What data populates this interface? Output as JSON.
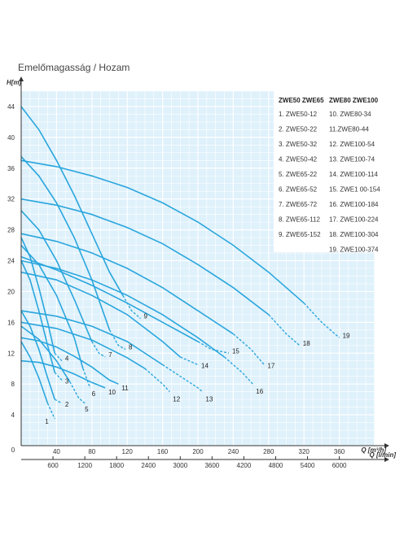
{
  "chart_data": {
    "type": "line",
    "title": "Emelőmagasság / Hozam",
    "ylabel": "H[m]",
    "xlabel": "Q [m³/h]",
    "x2label": "Q [l/min]",
    "xlim": [
      0,
      400
    ],
    "ylim": [
      0,
      46
    ],
    "y_ticks": [
      "4",
      "8",
      "12",
      "16",
      "20",
      "24",
      "28",
      "32",
      "36",
      "40",
      "44"
    ],
    "x_ticks": [
      "40",
      "80",
      "120",
      "160",
      "200",
      "240",
      "280",
      "320",
      "360"
    ],
    "origin_label": "0",
    "x2_ticks": [
      "600",
      "1200",
      "1800",
      "2400",
      "3000",
      "3600",
      "4200",
      "4800",
      "5400",
      "6000"
    ],
    "grid": true,
    "legend": {
      "placement": "top-right",
      "headers": [
        "ZWE50 ZWE65",
        "ZWE80 ZWE100"
      ],
      "col1": [
        "1. ZWE50-12",
        "2. ZWE50-22",
        "3. ZWE50-32",
        "4. ZWE50-42",
        "5. ZWE65-22",
        "6. ZWE65-52",
        "7. ZWE65-72",
        "8. ZWE65-112",
        "9. ZWE65-152"
      ],
      "col2": [
        "10. ZWE80-34",
        "11.ZWE80-44",
        "12. ZWE100-54",
        "13. ZWE100-74",
        "14. ZWE100-114",
        "15. ZWE1 00-154",
        "16. ZWE100-184",
        "17. ZWE100-224",
        "18. ZWE100-304",
        "19. ZWE100-374"
      ]
    },
    "series": [
      {
        "name": "1",
        "x": [
          0,
          10,
          20,
          30,
          38
        ],
        "y": [
          13.5,
          11.5,
          8.8,
          5.5,
          3.5
        ],
        "dash_from": 30
      },
      {
        "name": "2",
        "x": [
          0,
          10,
          20,
          30,
          38,
          46
        ],
        "y": [
          17.5,
          15.5,
          12.5,
          8.8,
          6.0,
          5.5
        ],
        "dash_from": 38
      },
      {
        "name": "3",
        "x": [
          0,
          10,
          20,
          30,
          38,
          46
        ],
        "y": [
          24.0,
          21.5,
          17.5,
          13.0,
          9.5,
          8.5
        ],
        "dash_from": 38
      },
      {
        "name": "4",
        "x": [
          0,
          10,
          20,
          30,
          38,
          46
        ],
        "y": [
          27.0,
          24.5,
          20.5,
          16.0,
          12.0,
          11.0
        ],
        "dash_from": 38
      },
      {
        "name": "5",
        "x": [
          0,
          20,
          40,
          55,
          65,
          72
        ],
        "y": [
          15.5,
          13.8,
          11.0,
          8.3,
          6.2,
          5.5
        ],
        "dash_from": 55
      },
      {
        "name": "6",
        "x": [
          0,
          20,
          40,
          60,
          70,
          78
        ],
        "y": [
          26.0,
          23.5,
          19.5,
          14.0,
          10.0,
          7.5
        ],
        "dash_from": 70
      },
      {
        "name": "7",
        "x": [
          0,
          20,
          40,
          60,
          80,
          88,
          95
        ],
        "y": [
          30.5,
          28.0,
          24.0,
          19.0,
          13.5,
          12.0,
          11.5
        ],
        "dash_from": 80
      },
      {
        "name": "8",
        "x": [
          0,
          20,
          40,
          60,
          80,
          100,
          110,
          118
        ],
        "y": [
          37.5,
          35.0,
          31.5,
          27.0,
          21.5,
          15.0,
          13.0,
          12.5
        ],
        "dash_from": 100
      },
      {
        "name": "9",
        "x": [
          0,
          20,
          40,
          60,
          80,
          100,
          115,
          125,
          135
        ],
        "y": [
          44.0,
          41.0,
          37.0,
          32.5,
          27.5,
          22.5,
          19.5,
          17.5,
          16.5
        ],
        "dash_from": 115
      },
      {
        "name": "10",
        "x": [
          0,
          20,
          40,
          60,
          80,
          95
        ],
        "y": [
          11.0,
          10.8,
          10.2,
          9.3,
          8.2,
          7.5
        ],
        "dash_from": 95
      },
      {
        "name": "11",
        "x": [
          0,
          20,
          40,
          60,
          80,
          100,
          110
        ],
        "y": [
          14.0,
          13.6,
          12.8,
          11.6,
          10.2,
          8.5,
          8.0
        ],
        "dash_from": 110
      },
      {
        "name": "12",
        "x": [
          0,
          40,
          80,
          120,
          140,
          160,
          168
        ],
        "y": [
          16.0,
          15.2,
          13.7,
          11.4,
          10.0,
          8.0,
          7.0
        ],
        "dash_from": 150
      },
      {
        "name": "13",
        "x": [
          0,
          40,
          80,
          120,
          160,
          180,
          200,
          205
        ],
        "y": [
          17.5,
          16.8,
          15.5,
          13.5,
          10.5,
          9.0,
          7.5,
          7.0
        ],
        "dash_from": 175
      },
      {
        "name": "14",
        "x": [
          0,
          40,
          80,
          120,
          160,
          180,
          200
        ],
        "y": [
          22.5,
          21.5,
          19.5,
          17.0,
          13.5,
          11.5,
          10.5
        ],
        "dash_from": 180
      },
      {
        "name": "15",
        "x": [
          0,
          40,
          80,
          120,
          160,
          200,
          215,
          235
        ],
        "y": [
          24.5,
          22.8,
          20.8,
          18.5,
          16.0,
          13.5,
          12.5,
          12.0
        ],
        "dash_from": 210
      },
      {
        "name": "16",
        "x": [
          0,
          40,
          80,
          120,
          160,
          200,
          230,
          250,
          262
        ],
        "y": [
          24.0,
          23.0,
          21.5,
          19.5,
          17.0,
          14.0,
          11.5,
          9.5,
          8.0
        ],
        "dash_from": 230
      },
      {
        "name": "17",
        "x": [
          0,
          40,
          80,
          120,
          160,
          200,
          240,
          260,
          275
        ],
        "y": [
          27.5,
          26.5,
          25.0,
          23.0,
          20.5,
          17.5,
          14.5,
          12.5,
          10.5
        ],
        "dash_from": 255
      },
      {
        "name": "18",
        "x": [
          0,
          40,
          80,
          120,
          160,
          200,
          240,
          280,
          300,
          315
        ],
        "y": [
          32.0,
          31.2,
          30.0,
          28.3,
          26.2,
          23.5,
          20.5,
          17.0,
          14.5,
          13.0
        ],
        "dash_from": 295
      },
      {
        "name": "19",
        "x": [
          0,
          40,
          80,
          120,
          160,
          200,
          240,
          280,
          320,
          340,
          360
        ],
        "y": [
          37.0,
          36.2,
          35.0,
          33.5,
          31.5,
          29.0,
          26.0,
          22.5,
          18.5,
          16.0,
          14.0
        ],
        "dash_from": 330
      }
    ]
  }
}
